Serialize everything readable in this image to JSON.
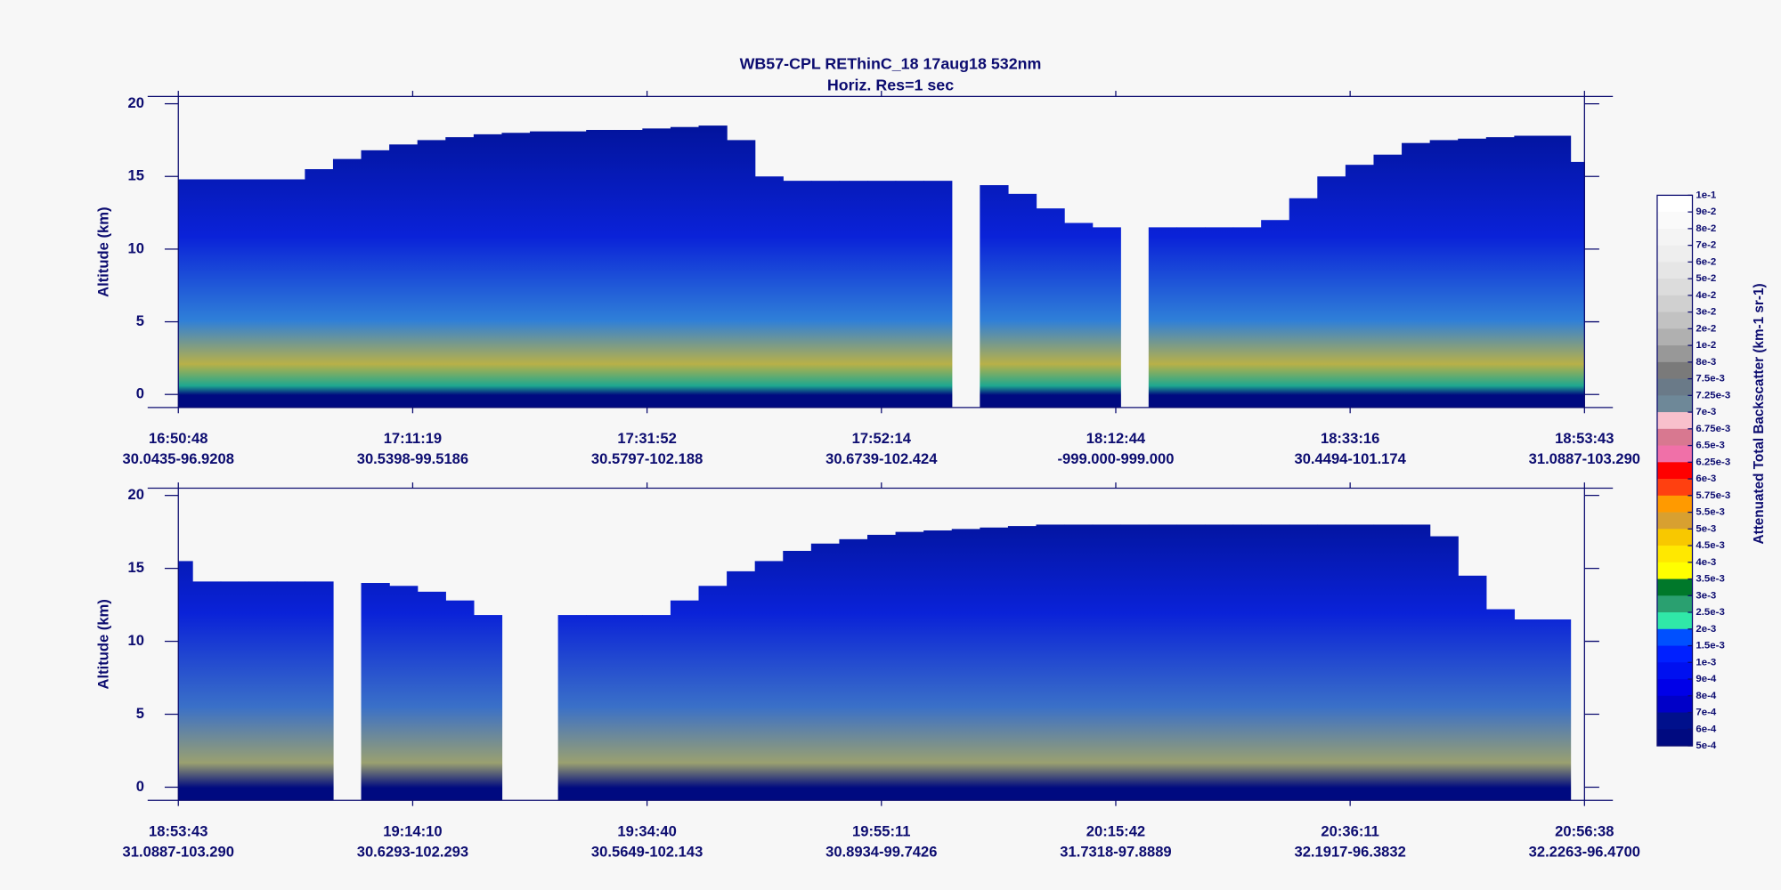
{
  "chart_data": [
    {
      "type": "curtain",
      "title": "WB57-CPL  REThinC_18  17aug18  532nm",
      "subtitle": "Horiz. Res=1 sec",
      "y_label": "Altitude (km)",
      "ylim": [
        -0.9,
        20.5
      ],
      "yticks": [
        0,
        5,
        10,
        15,
        20
      ],
      "color": "#00108c",
      "xticks": [
        "16:50:48",
        "17:11:19",
        "17:31:52",
        "17:52:14",
        "18:12:44",
        "18:33:16",
        "18:53:43"
      ],
      "xtick_sublabels": [
        "30.0435-96.9208",
        "30.5398-99.5186",
        "30.5797-102.188",
        "30.6739-102.424",
        "-999.000-999.000",
        "30.4494-101.174",
        "31.0887-103.290"
      ],
      "values": [
        14.8,
        14.8,
        14.8,
        14.8,
        14.8,
        15.5,
        16.2,
        16.8,
        17.2,
        17.5,
        17.7,
        17.9,
        18.0,
        18.1,
        18.1,
        18.2,
        18.2,
        18.3,
        18.4,
        18.5,
        17.5,
        15,
        14.7,
        14.7,
        14.7,
        14.7,
        14.7,
        14.7,
        null,
        14.4,
        13.8,
        12.8,
        11.8,
        11.5,
        null,
        11.5,
        11.5,
        11.5,
        11.5,
        12,
        13.5,
        15,
        15.8,
        16.5,
        17.3,
        17.5,
        17.6,
        17.7,
        17.8,
        17.8,
        16
      ]
    },
    {
      "type": "curtain",
      "y_label": "Altitude (km)",
      "ylim": [
        -0.9,
        20.5
      ],
      "yticks": [
        0,
        5,
        10,
        15,
        20
      ],
      "color": "#00108c",
      "xticks": [
        "18:53:43",
        "19:14:10",
        "19:34:40",
        "19:55:11",
        "20:15:42",
        "20:36:11",
        "20:56:38"
      ],
      "xtick_sublabels": [
        "31.0887-103.290",
        "30.6293-102.293",
        "30.5649-102.143",
        "30.8934-99.7426",
        "31.7318-97.8889",
        "32.1917-96.3832",
        "32.2263-96.4700"
      ],
      "values": [
        15.5,
        14.1,
        14.1,
        14.1,
        14.1,
        14.1,
        null,
        14,
        13.8,
        13.4,
        12.8,
        11.8,
        null,
        null,
        11.8,
        11.8,
        11.8,
        11.8,
        12.8,
        13.8,
        14.8,
        15.5,
        16.2,
        16.7,
        17,
        17.3,
        17.5,
        17.6,
        17.7,
        17.8,
        17.9,
        18,
        18,
        18,
        18,
        18,
        18,
        18,
        18,
        18,
        18,
        18,
        18,
        18,
        18,
        17.2,
        14.5,
        12.2,
        11.5,
        11.5,
        null
      ]
    },
    {
      "type": "colorbar",
      "title": "Attenuated Total Backscatter (km-1 sr-1)",
      "ticks": [
        {
          "value": 0.1,
          "label": "1e-1"
        },
        {
          "value": 0.09,
          "label": "9e-2"
        },
        {
          "value": 0.08,
          "label": "8e-2"
        },
        {
          "value": 0.07,
          "label": "7e-2"
        },
        {
          "value": 0.06,
          "label": "6e-2"
        },
        {
          "value": 0.05,
          "label": "5e-2"
        },
        {
          "value": 0.04,
          "label": "4e-2"
        },
        {
          "value": 0.03,
          "label": "3e-2"
        },
        {
          "value": 0.02,
          "label": "2e-2"
        },
        {
          "value": 0.01,
          "label": "1e-2"
        },
        {
          "value": 0.008,
          "label": "8e-3"
        },
        {
          "value": 0.0075,
          "label": "7.5e-3"
        },
        {
          "value": 0.00725,
          "label": "7.25e-3"
        },
        {
          "value": 0.007,
          "label": "7e-3"
        },
        {
          "value": 0.00675,
          "label": "6.75e-3"
        },
        {
          "value": 0.0065,
          "label": "6.5e-3"
        },
        {
          "value": 0.00625,
          "label": "6.25e-3"
        },
        {
          "value": 0.006,
          "label": "6e-3"
        },
        {
          "value": 0.00575,
          "label": "5.75e-3"
        },
        {
          "value": 0.0055,
          "label": "5.5e-3"
        },
        {
          "value": 0.005,
          "label": "5e-3"
        },
        {
          "value": 0.0045,
          "label": "4.5e-3"
        },
        {
          "value": 0.004,
          "label": "4e-3"
        },
        {
          "value": 0.0035,
          "label": "3.5e-3"
        },
        {
          "value": 0.003,
          "label": "3e-3"
        },
        {
          "value": 0.0025,
          "label": "2.5e-3"
        },
        {
          "value": 0.002,
          "label": "2e-3"
        },
        {
          "value": 0.0015,
          "label": "1.5e-3"
        },
        {
          "value": 0.001,
          "label": "1e-3"
        },
        {
          "value": 0.0009,
          "label": "9e-4"
        },
        {
          "value": 0.0008,
          "label": "8e-4"
        },
        {
          "value": 0.0007,
          "label": "7e-4"
        },
        {
          "value": 0.0006,
          "label": "6e-4"
        },
        {
          "value": 0.0005,
          "label": "5e-4"
        }
      ],
      "colors": [
        "#ffffff",
        "#fafafa",
        "#f4f4f4",
        "#eeeeee",
        "#e6e6e6",
        "#dcdcdc",
        "#d0d0d0",
        "#c2c2c2",
        "#b0b0b0",
        "#989898",
        "#7a7a7a",
        "#6a7a88",
        "#6e8898",
        "#f8c0cc",
        "#d87890",
        "#f070a8",
        "#ff0000",
        "#ff4010",
        "#ff9a00",
        "#d8a030",
        "#f8c800",
        "#ffe800",
        "#ffff00",
        "#00782a",
        "#2aa070",
        "#30e8a8",
        "#0050ff",
        "#0020ff",
        "#0010f0",
        "#0000e8",
        "#0000c8",
        "#00108c",
        "#000a80"
      ]
    }
  ]
}
